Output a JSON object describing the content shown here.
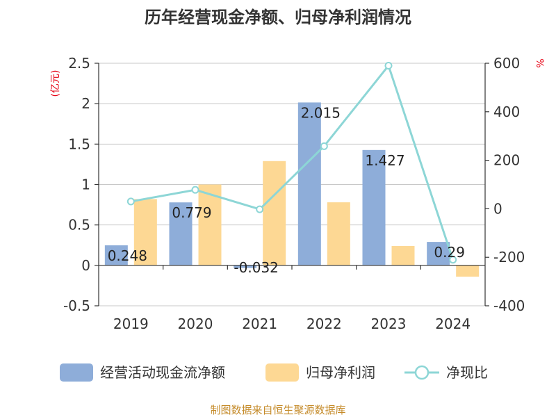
{
  "chart_data": {
    "type": "bar",
    "title": "历年经营现金净额、归母净利润情况",
    "categories": [
      "2019",
      "2020",
      "2021",
      "2022",
      "2023",
      "2024"
    ],
    "series": [
      {
        "name": "经营活动现金流净额",
        "type": "bar",
        "axis": "left",
        "color": "#8eadd9",
        "values": [
          0.248,
          0.779,
          -0.032,
          2.015,
          1.427,
          0.29
        ],
        "labels": [
          "0.248",
          "0.779",
          "-0.032",
          "2.015",
          "1.427",
          "0.29"
        ]
      },
      {
        "name": "归母净利润",
        "type": "bar",
        "axis": "left",
        "color": "#fdd894",
        "values": [
          0.82,
          1.0,
          1.29,
          0.78,
          0.24,
          -0.14
        ]
      },
      {
        "name": "净现比",
        "type": "line",
        "axis": "right",
        "color": "#8dd6d6",
        "values": [
          30,
          78,
          -2,
          258,
          590,
          -210
        ]
      }
    ],
    "y_left": {
      "label": "(亿元)",
      "min": -0.5,
      "max": 2.5,
      "ticks": [
        "-0.5",
        "0",
        "0.5",
        "1",
        "1.5",
        "2",
        "2.5"
      ]
    },
    "y_right": {
      "label": "%",
      "min": -400,
      "max": 600,
      "ticks": [
        "-400",
        "-200",
        "0",
        "200",
        "400",
        "600"
      ]
    },
    "grid": true,
    "legend_position": "bottom"
  },
  "source": "制图数据来自恒生聚源数据库"
}
